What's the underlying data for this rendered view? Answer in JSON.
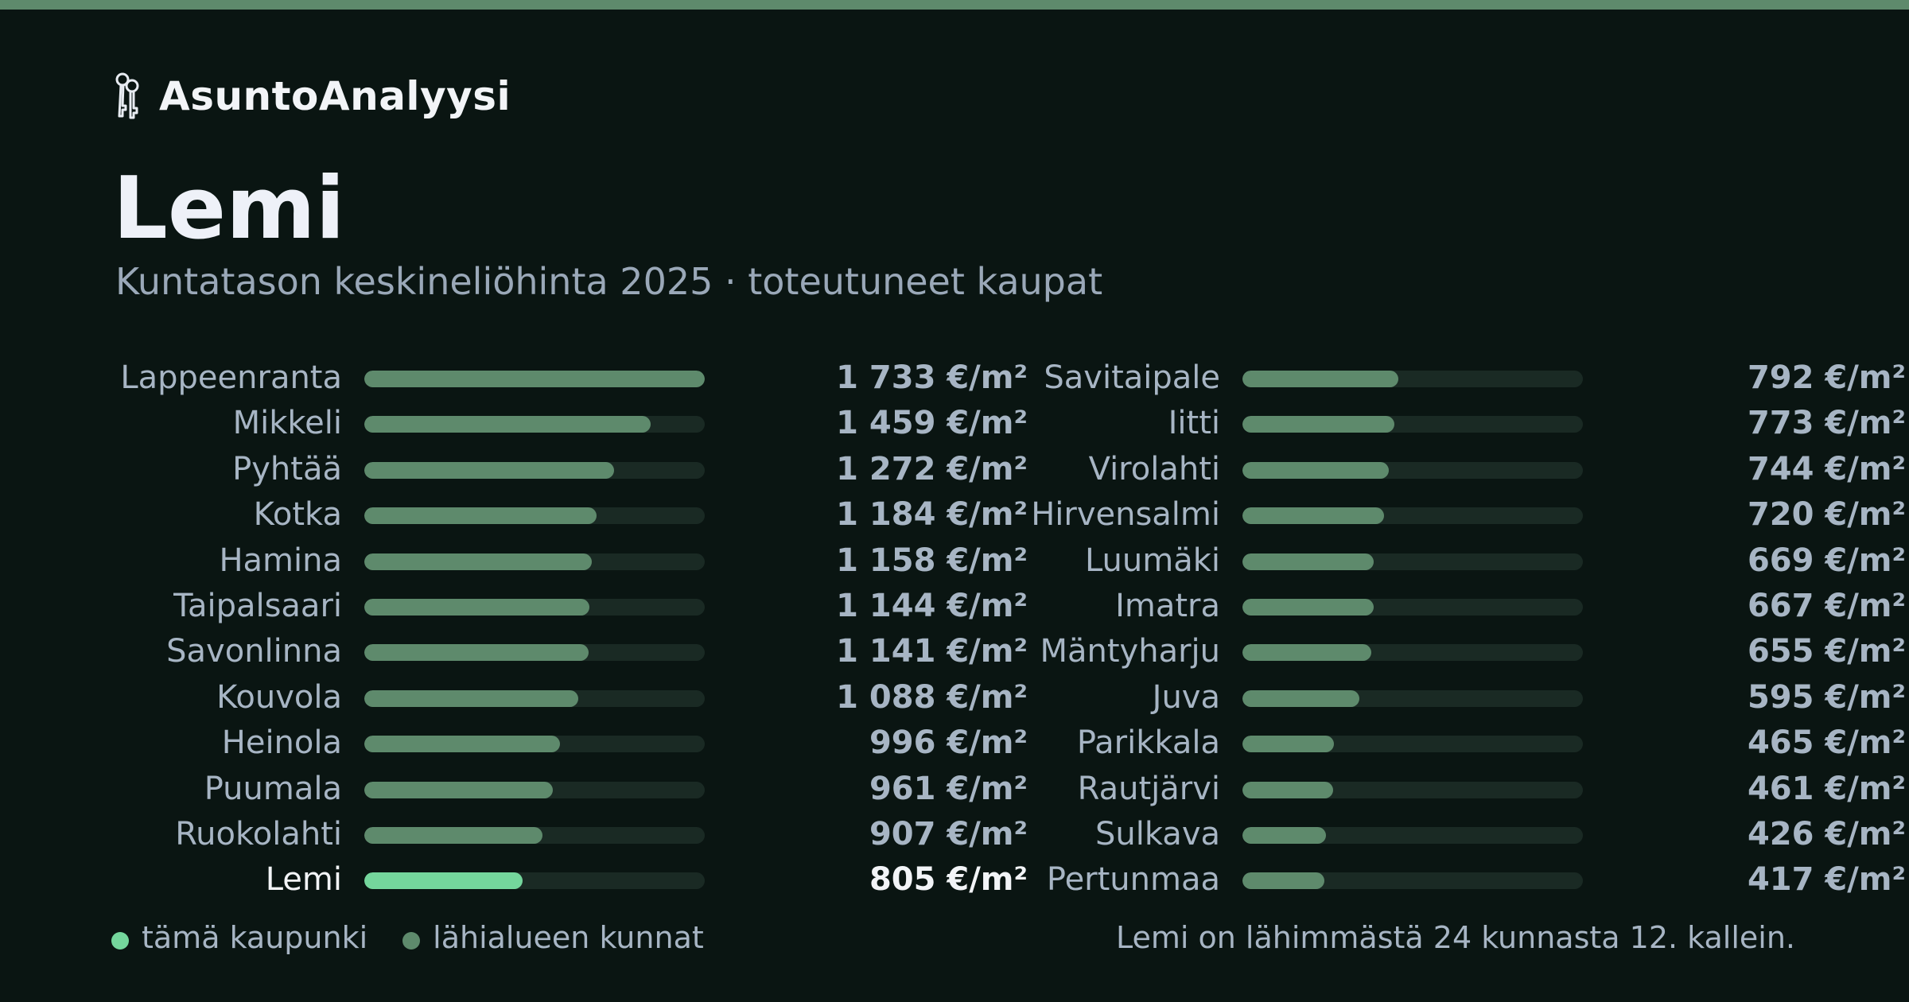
{
  "brand": {
    "name": "AsuntoAnalyysi",
    "icon": "keys-icon"
  },
  "title": "Lemi",
  "subtitle": "Kuntatason keskineliöhinta 2025 · toteutuneet kaupat",
  "colors": {
    "accent": "#5e8a6c",
    "highlight": "#74d69c",
    "background": "#0a1512",
    "track": "#1a2a24"
  },
  "chart_data": {
    "type": "bar",
    "orientation": "horizontal",
    "unit": "€/m²",
    "xlim": [
      0,
      1733
    ],
    "highlight": "Lemi",
    "categories": [
      "Lappeenranta",
      "Mikkeli",
      "Pyhtää",
      "Kotka",
      "Hamina",
      "Taipalsaari",
      "Savonlinna",
      "Kouvola",
      "Heinola",
      "Puumala",
      "Ruokolahti",
      "Lemi",
      "Savitaipale",
      "Iitti",
      "Virolahti",
      "Hirvensalmi",
      "Luumäki",
      "Imatra",
      "Mäntyharju",
      "Juva",
      "Parikkala",
      "Rautjärvi",
      "Sulkava",
      "Pertunmaa"
    ],
    "values": [
      1733,
      1459,
      1272,
      1184,
      1158,
      1144,
      1141,
      1088,
      996,
      961,
      907,
      805,
      792,
      773,
      744,
      720,
      669,
      667,
      655,
      595,
      465,
      461,
      426,
      417
    ],
    "labels": [
      "1 733 €/m²",
      "1 459 €/m²",
      "1 272 €/m²",
      "1 184 €/m²",
      "1 158 €/m²",
      "1 144 €/m²",
      "1 141 €/m²",
      "1 088 €/m²",
      "996 €/m²",
      "961 €/m²",
      "907 €/m²",
      "805 €/m²",
      "792 €/m²",
      "773 €/m²",
      "744 €/m²",
      "720 €/m²",
      "669 €/m²",
      "667 €/m²",
      "655 €/m²",
      "595 €/m²",
      "465 €/m²",
      "461 €/m²",
      "426 €/m²",
      "417 €/m²"
    ]
  },
  "legend": {
    "current": "tämä kaupunki",
    "others": "lähialueen kunnat"
  },
  "footnote": "Lemi on lähimmästä 24 kunnasta 12. kallein."
}
